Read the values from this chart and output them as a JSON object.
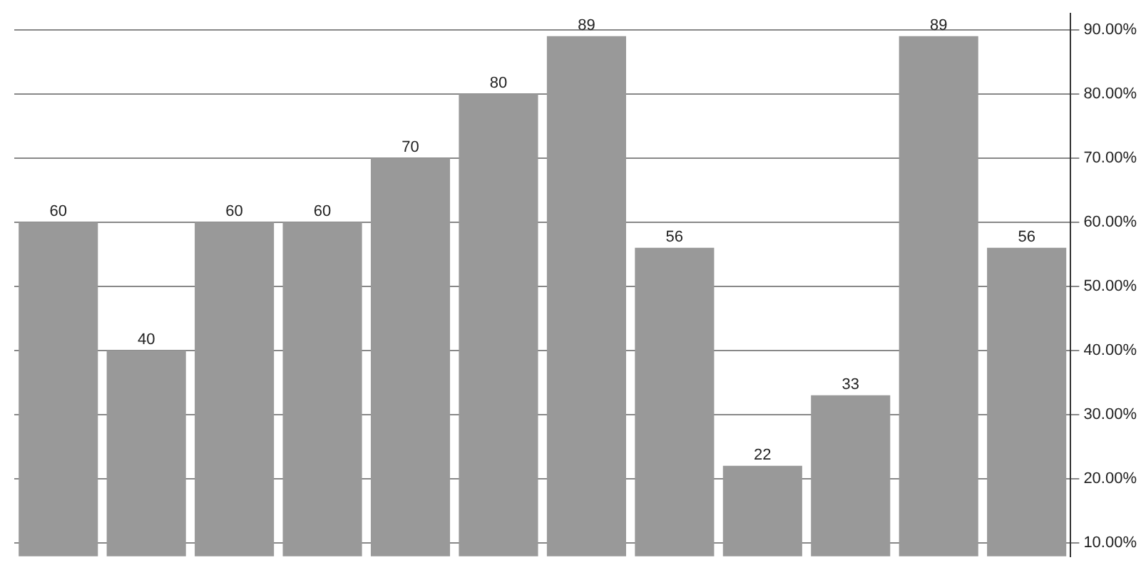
{
  "chart_data": {
    "type": "bar",
    "categories": [
      null,
      null,
      null,
      null,
      null,
      null,
      null,
      null,
      null,
      null,
      null,
      null
    ],
    "values": [
      60,
      40,
      60,
      60,
      70,
      80,
      89,
      56,
      22,
      33,
      89,
      56
    ],
    "color": "#999999",
    "data_labels": true,
    "ylim": [
      7.9,
      92.5
    ],
    "yticks": [
      {
        "value": 10,
        "label": "10.00%"
      },
      {
        "value": 20,
        "label": "20.00%"
      },
      {
        "value": 30,
        "label": "30.00%"
      },
      {
        "value": 40,
        "label": "40.00%"
      },
      {
        "value": 50,
        "label": "50.00%"
      },
      {
        "value": 60,
        "label": "60.00%"
      },
      {
        "value": 70,
        "label": "70.00%"
      },
      {
        "value": 80,
        "label": "80.00%"
      },
      {
        "value": 90,
        "label": "90.00%"
      }
    ],
    "grid": "y",
    "tick_labels": "y",
    "legend": false
  }
}
